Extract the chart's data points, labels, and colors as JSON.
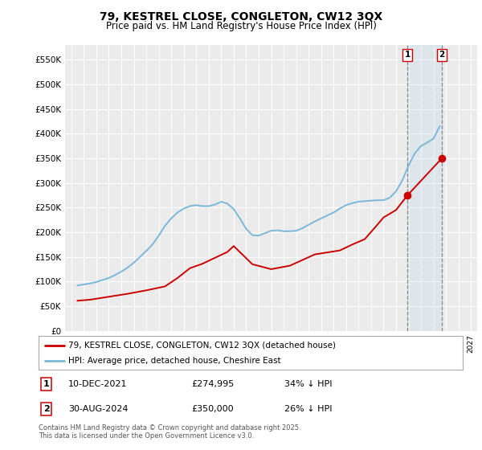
{
  "title": "79, KESTREL CLOSE, CONGLETON, CW12 3QX",
  "subtitle": "Price paid vs. HM Land Registry's House Price Index (HPI)",
  "hpi_color": "#7ab8d9",
  "price_color": "#cc0000",
  "plot_bg": "#ebebeb",
  "ylim": [
    0,
    580000
  ],
  "yticks": [
    0,
    50000,
    100000,
    150000,
    200000,
    250000,
    300000,
    350000,
    400000,
    450000,
    500000,
    550000
  ],
  "ytick_labels": [
    "£0",
    "£50K",
    "£100K",
    "£150K",
    "£200K",
    "£250K",
    "£300K",
    "£350K",
    "£400K",
    "£450K",
    "£500K",
    "£550K"
  ],
  "legend_label_red": "79, KESTREL CLOSE, CONGLETON, CW12 3QX (detached house)",
  "legend_label_blue": "HPI: Average price, detached house, Cheshire East",
  "marker1_date": "10-DEC-2021",
  "marker1_price": 274995,
  "marker1_pct": "34%",
  "marker2_date": "30-AUG-2024",
  "marker2_price": 350000,
  "marker2_pct": "26%",
  "footer": "Contains HM Land Registry data © Crown copyright and database right 2025.\nThis data is licensed under the Open Government Licence v3.0.",
  "hpi_x": [
    1995.5,
    1996.0,
    1996.5,
    1997.0,
    1997.5,
    1998.0,
    1998.5,
    1999.0,
    1999.5,
    2000.0,
    2000.5,
    2001.0,
    2001.5,
    2002.0,
    2002.5,
    2003.0,
    2003.5,
    2004.0,
    2004.5,
    2005.0,
    2005.5,
    2006.0,
    2006.5,
    2007.0,
    2007.5,
    2008.0,
    2008.5,
    2009.0,
    2009.5,
    2010.0,
    2010.5,
    2011.0,
    2011.5,
    2012.0,
    2012.5,
    2013.0,
    2013.5,
    2014.0,
    2014.5,
    2015.0,
    2015.5,
    2016.0,
    2016.5,
    2017.0,
    2017.5,
    2018.0,
    2018.5,
    2019.0,
    2019.5,
    2020.0,
    2020.5,
    2021.0,
    2021.5,
    2022.0,
    2022.5,
    2023.0,
    2023.5,
    2024.0,
    2024.5
  ],
  "hpi_y": [
    92000,
    94000,
    96000,
    99000,
    103000,
    107000,
    113000,
    120000,
    128000,
    138000,
    150000,
    162000,
    175000,
    193000,
    213000,
    228000,
    240000,
    248000,
    253000,
    255000,
    253000,
    253000,
    256000,
    262000,
    258000,
    247000,
    228000,
    207000,
    194000,
    193000,
    198000,
    203000,
    204000,
    202000,
    202000,
    203000,
    208000,
    215000,
    222000,
    228000,
    234000,
    240000,
    248000,
    255000,
    259000,
    262000,
    263000,
    264000,
    265000,
    265000,
    270000,
    283000,
    305000,
    335000,
    360000,
    375000,
    382000,
    390000,
    415000
  ],
  "price_x": [
    1995.5,
    1996.5,
    1997.5,
    1999.5,
    2001.0,
    2002.5,
    2003.5,
    2004.5,
    2005.5,
    2006.5,
    2007.5,
    2008.0,
    2009.5,
    2011.0,
    2012.5,
    2014.5,
    2016.5,
    2017.5,
    2018.5,
    2019.5,
    2020.0,
    2021.0,
    2021.92,
    2024.67
  ],
  "price_y": [
    61000,
    63000,
    67000,
    75000,
    82000,
    90000,
    107000,
    127000,
    136000,
    148000,
    160000,
    172000,
    135000,
    125000,
    132000,
    155000,
    163000,
    175000,
    186000,
    215000,
    230000,
    245000,
    274995,
    350000
  ],
  "vline1_x": 2021.92,
  "vline2_x": 2024.67,
  "marker1_y": 274995,
  "marker2_y": 350000,
  "xlim": [
    1994.5,
    2027.5
  ],
  "xtick_start": 1995,
  "xtick_end": 2027
}
